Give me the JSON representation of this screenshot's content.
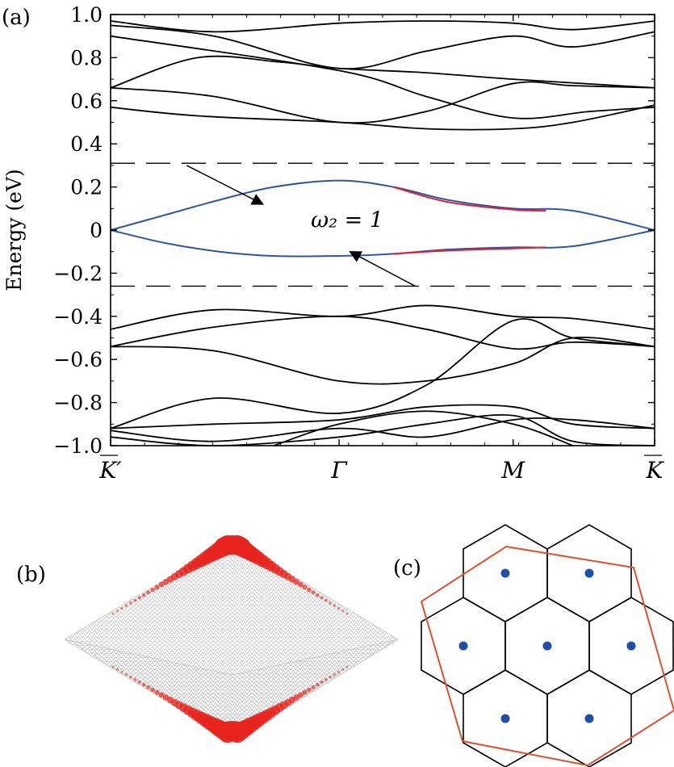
{
  "panels": {
    "a": "(a)",
    "b": "(b)",
    "c": "(c)"
  },
  "chart_data": {
    "type": "line",
    "ylabel": "Energy (eV)",
    "xlabel": "",
    "ylim": [
      -1.0,
      1.0
    ],
    "yticks": [
      -1.0,
      -0.8,
      -0.6,
      -0.4,
      -0.2,
      0,
      0.2,
      0.4,
      0.6,
      0.8,
      1.0
    ],
    "ytick_labels": [
      "−1.0",
      "−0.8",
      "−0.6",
      "−0.4",
      "−0.2",
      "0",
      "0.2",
      "0.4",
      "0.6",
      "0.8",
      "1.0"
    ],
    "xlim": [
      0,
      1
    ],
    "xticks": [
      0,
      0.42,
      0.74,
      1
    ],
    "xtick_labels": [
      "K′",
      "Γ",
      "M",
      "K"
    ],
    "fermi_window": [
      -0.26,
      0.31
    ],
    "annotation": {
      "text": "ω₂ = 1",
      "pos": [
        0.42,
        0.05
      ],
      "arrow_targets": [
        [
          0.28,
          0.12
        ],
        [
          0.44,
          -0.1
        ]
      ],
      "arrow_tails": [
        [
          0.14,
          0.3
        ],
        [
          0.56,
          -0.26
        ]
      ]
    },
    "series": [
      {
        "color": "#000000",
        "x": [
          0,
          0.19,
          0.42,
          0.58,
          0.74,
          0.85,
          1
        ],
        "y": [
          0.97,
          0.92,
          0.96,
          0.97,
          0.96,
          0.93,
          0.97
        ]
      },
      {
        "color": "#000000",
        "x": [
          0,
          0.19,
          0.42,
          0.58,
          0.74,
          0.85,
          1
        ],
        "y": [
          0.95,
          0.9,
          0.75,
          0.83,
          0.9,
          0.85,
          0.92
        ]
      },
      {
        "color": "#000000",
        "x": [
          0,
          0.16,
          0.31,
          0.42,
          0.58,
          0.74,
          1
        ],
        "y": [
          0.66,
          0.8,
          0.78,
          0.75,
          0.73,
          0.7,
          0.66
        ]
      },
      {
        "color": "#000000",
        "x": [
          0,
          0.19,
          0.42,
          0.58,
          0.74,
          0.85,
          1
        ],
        "y": [
          0.66,
          0.62,
          0.5,
          0.55,
          0.68,
          0.67,
          0.66
        ]
      },
      {
        "color": "#000000",
        "x": [
          0,
          0.16,
          0.42,
          0.58,
          0.74,
          0.85,
          1
        ],
        "y": [
          0.57,
          0.53,
          0.5,
          0.47,
          0.47,
          0.5,
          0.58
        ]
      },
      {
        "color": "#000000",
        "x": [
          0,
          0.42,
          0.58,
          0.74,
          0.88,
          1
        ],
        "y": [
          0.9,
          0.74,
          0.62,
          0.52,
          0.55,
          0.57
        ]
      },
      {
        "color": "#2f55a8",
        "x": [
          0,
          0.1,
          0.2,
          0.3,
          0.42,
          0.52,
          0.62,
          0.74,
          0.85,
          1
        ],
        "y": [
          0,
          0.07,
          0.14,
          0.2,
          0.23,
          0.2,
          0.14,
          0.1,
          0.09,
          0
        ]
      },
      {
        "color": "#e0202a",
        "x": [
          0.52,
          0.62,
          0.74,
          0.8
        ],
        "y": [
          0.2,
          0.13,
          0.095,
          0.09
        ]
      },
      {
        "color": "#2f55a8",
        "x": [
          0,
          0.1,
          0.2,
          0.3,
          0.42,
          0.52,
          0.62,
          0.74,
          0.85,
          1
        ],
        "y": [
          0,
          -0.06,
          -0.1,
          -0.12,
          -0.12,
          -0.11,
          -0.09,
          -0.08,
          -0.075,
          0
        ]
      },
      {
        "color": "#e0202a",
        "x": [
          0.52,
          0.62,
          0.74,
          0.8
        ],
        "y": [
          -0.11,
          -0.095,
          -0.085,
          -0.08
        ]
      },
      {
        "color": "#000000",
        "x": [
          0,
          0.19,
          0.42,
          0.58,
          0.74,
          0.85,
          1
        ],
        "y": [
          -0.46,
          -0.37,
          -0.4,
          -0.35,
          -0.4,
          -0.41,
          -0.46
        ]
      },
      {
        "color": "#000000",
        "x": [
          0,
          0.19,
          0.42,
          0.58,
          0.74,
          0.85,
          1
        ],
        "y": [
          -0.54,
          -0.45,
          -0.4,
          -0.46,
          -0.55,
          -0.52,
          -0.54
        ]
      },
      {
        "color": "#000000",
        "x": [
          0,
          0.19,
          0.42,
          0.58,
          0.74,
          0.85,
          1
        ],
        "y": [
          -0.54,
          -0.56,
          -0.7,
          -0.7,
          -0.62,
          -0.5,
          -0.54
        ]
      },
      {
        "color": "#000000",
        "x": [
          0,
          0.19,
          0.42,
          0.58,
          0.74,
          0.85,
          1
        ],
        "y": [
          -0.92,
          -0.78,
          -0.85,
          -0.72,
          -0.42,
          -0.5,
          -0.54
        ]
      },
      {
        "color": "#000000",
        "x": [
          0,
          0.19,
          0.42,
          0.58,
          0.74,
          0.85,
          1
        ],
        "y": [
          -0.92,
          -0.9,
          -0.88,
          -0.82,
          -0.82,
          -0.9,
          -0.92
        ]
      },
      {
        "color": "#000000",
        "x": [
          0,
          0.19,
          0.42,
          0.58,
          0.74,
          0.85,
          1
        ],
        "y": [
          -0.93,
          -0.98,
          -0.92,
          -0.96,
          -0.88,
          -0.88,
          -0.92
        ]
      },
      {
        "color": "#000000",
        "x": [
          0,
          0.19,
          0.42,
          0.58,
          0.74,
          0.85,
          1
        ],
        "y": [
          -0.96,
          -1.0,
          -0.96,
          -0.9,
          -0.86,
          -0.98,
          -1.0
        ]
      },
      {
        "color": "#000000",
        "x": [
          0.3,
          0.42,
          0.58,
          0.74,
          0.85
        ],
        "y": [
          -1.0,
          -0.9,
          -0.84,
          -0.9,
          -1.0
        ]
      }
    ]
  },
  "diagram_b": {
    "lattice_color": "#b8b8b8",
    "edge_state_color": "#e8231d"
  },
  "diagram_c": {
    "hex_color": "#000000",
    "supercell_color": "#e0502a",
    "dot_color": "#1f4fa8"
  }
}
